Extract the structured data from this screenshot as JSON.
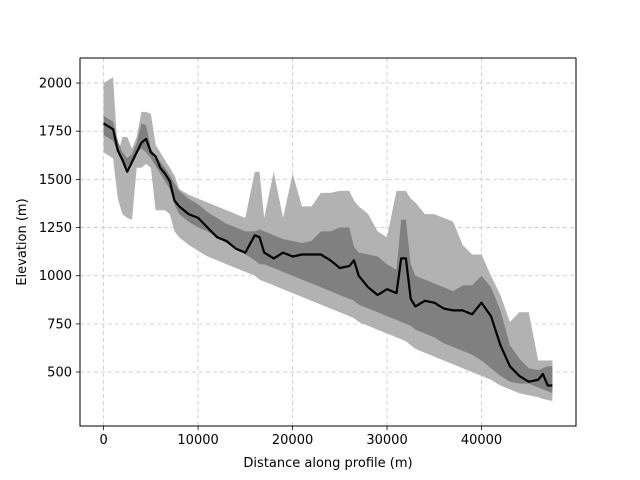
{
  "chart_data": {
    "type": "area",
    "title": "",
    "xlabel": "Distance along profile (m)",
    "ylabel": "Elevation (m)",
    "xlim": [
      -2500,
      50000
    ],
    "ylim": [
      220,
      2130
    ],
    "xticks": [
      0,
      10000,
      20000,
      30000,
      40000
    ],
    "xtick_labels": [
      "0",
      "10000",
      "20000",
      "30000",
      "40000"
    ],
    "yticks": [
      500,
      750,
      1000,
      1250,
      1500,
      1750,
      2000
    ],
    "ytick_labels": [
      "500",
      "750",
      "1000",
      "1250",
      "1500",
      "1750",
      "2000"
    ],
    "grid": true,
    "legend": "none",
    "colors": {
      "outer_band": "#b2b2b2",
      "inner_band": "#808080",
      "line": "#000000",
      "grid": "#c8c8c8"
    },
    "x": [
      0,
      1000,
      1500,
      2000,
      2500,
      3000,
      3500,
      4000,
      4500,
      5000,
      5500,
      6000,
      6500,
      7000,
      7500,
      8000,
      9000,
      10000,
      11000,
      12000,
      13000,
      14000,
      15000,
      16000,
      16500,
      17000,
      18000,
      19000,
      20000,
      21000,
      22000,
      23000,
      24000,
      25000,
      26000,
      26500,
      27000,
      28000,
      29000,
      30000,
      31000,
      31500,
      32000,
      32500,
      33000,
      34000,
      35000,
      36000,
      37000,
      38000,
      39000,
      40000,
      41000,
      42000,
      43000,
      44000,
      45000,
      46000,
      46500,
      47000,
      47500
    ],
    "series": [
      {
        "role": "outer-max",
        "values": [
          2000,
          2030,
          1630,
          1720,
          1720,
          1660,
          1720,
          1850,
          1850,
          1840,
          1680,
          1640,
          1600,
          1560,
          1520,
          1450,
          1420,
          1400,
          1380,
          1360,
          1340,
          1320,
          1300,
          1540,
          1540,
          1300,
          1540,
          1300,
          1530,
          1360,
          1360,
          1430,
          1430,
          1440,
          1440,
          1390,
          1360,
          1320,
          1230,
          1200,
          1440,
          1440,
          1440,
          1400,
          1380,
          1320,
          1320,
          1300,
          1280,
          1160,
          1110,
          1110,
          1000,
          900,
          760,
          810,
          810,
          560,
          560,
          560,
          560
        ]
      },
      {
        "role": "inner-max",
        "values": [
          1830,
          1800,
          1700,
          1640,
          1610,
          1630,
          1690,
          1790,
          1780,
          1660,
          1620,
          1590,
          1560,
          1520,
          1480,
          1440,
          1400,
          1370,
          1330,
          1300,
          1270,
          1250,
          1230,
          1230,
          1240,
          1230,
          1210,
          1190,
          1180,
          1170,
          1180,
          1230,
          1230,
          1250,
          1250,
          1150,
          1120,
          1110,
          1100,
          1060,
          1030,
          1290,
          1290,
          1060,
          1000,
          980,
          960,
          940,
          920,
          950,
          950,
          1000,
          940,
          820,
          640,
          570,
          520,
          510,
          520,
          530,
          530
        ]
      },
      {
        "role": "median",
        "values": [
          1790,
          1760,
          1650,
          1600,
          1540,
          1590,
          1640,
          1690,
          1710,
          1640,
          1620,
          1560,
          1530,
          1490,
          1390,
          1360,
          1320,
          1300,
          1250,
          1200,
          1180,
          1140,
          1120,
          1210,
          1200,
          1120,
          1090,
          1120,
          1100,
          1110,
          1110,
          1110,
          1080,
          1040,
          1050,
          1080,
          1000,
          940,
          900,
          930,
          910,
          1090,
          1090,
          880,
          840,
          870,
          860,
          830,
          820,
          820,
          800,
          860,
          790,
          640,
          530,
          480,
          450,
          460,
          490,
          430,
          430
        ]
      },
      {
        "role": "inner-min",
        "values": [
          1730,
          1700,
          1640,
          1590,
          1560,
          1600,
          1640,
          1660,
          1640,
          1610,
          1570,
          1530,
          1490,
          1450,
          1370,
          1320,
          1280,
          1250,
          1230,
          1200,
          1170,
          1140,
          1110,
          1080,
          1060,
          1060,
          1040,
          1020,
          1000,
          980,
          960,
          940,
          920,
          900,
          880,
          870,
          850,
          830,
          810,
          790,
          770,
          760,
          750,
          740,
          720,
          700,
          680,
          650,
          630,
          610,
          590,
          560,
          520,
          480,
          450,
          440,
          440,
          420,
          410,
          400,
          390
        ]
      },
      {
        "role": "outer-min",
        "values": [
          1640,
          1610,
          1400,
          1320,
          1300,
          1290,
          1560,
          1560,
          1580,
          1560,
          1340,
          1340,
          1340,
          1320,
          1230,
          1200,
          1160,
          1130,
          1100,
          1080,
          1060,
          1040,
          1020,
          1000,
          980,
          970,
          950,
          930,
          910,
          890,
          870,
          850,
          830,
          810,
          790,
          780,
          760,
          740,
          720,
          700,
          680,
          670,
          660,
          640,
          620,
          600,
          580,
          560,
          540,
          520,
          500,
          480,
          460,
          430,
          410,
          390,
          380,
          370,
          360,
          355,
          350
        ]
      }
    ]
  }
}
